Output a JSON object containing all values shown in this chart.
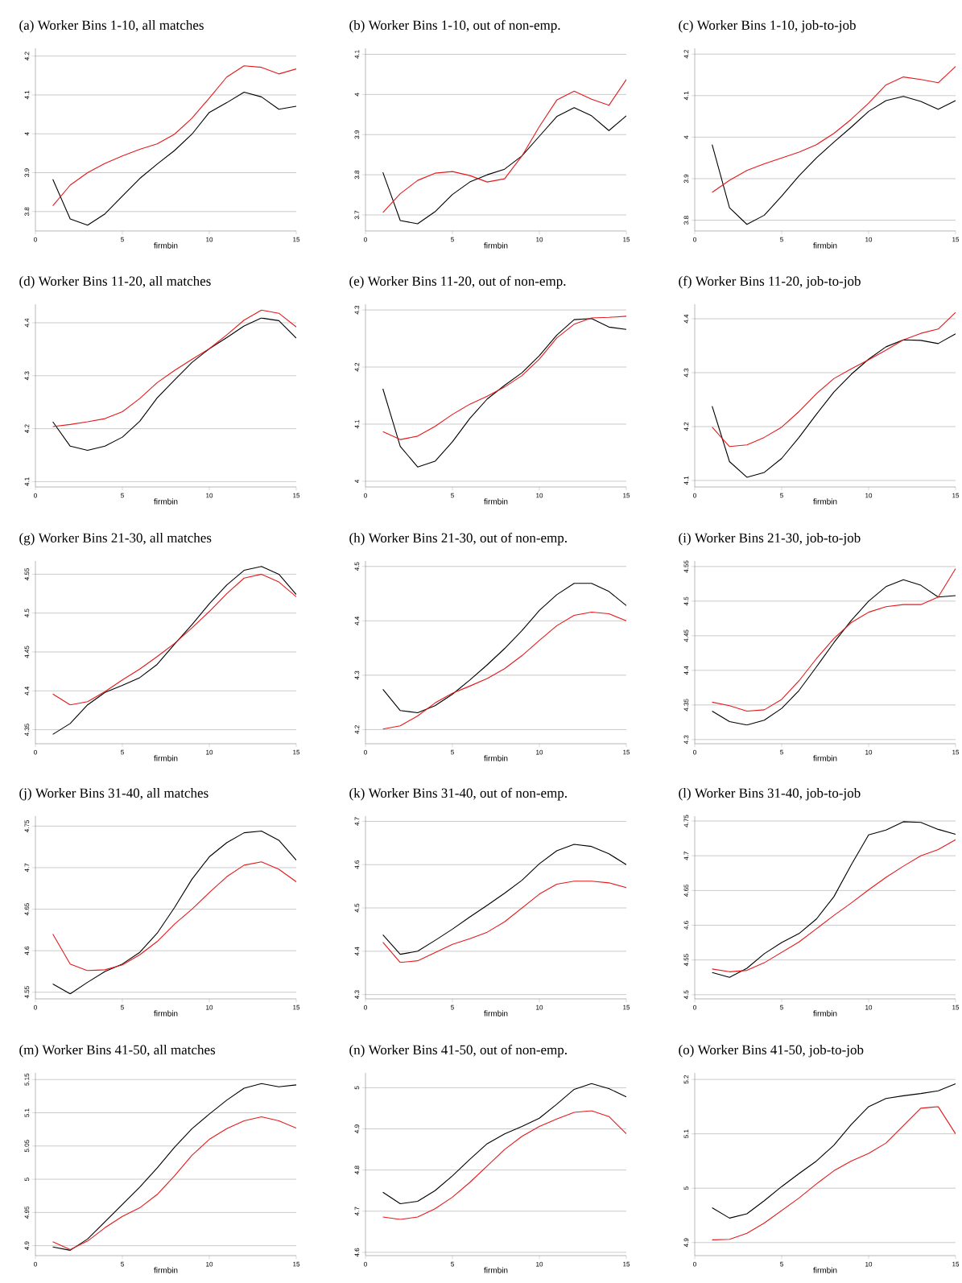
{
  "chart_data": [
    {
      "type": "line",
      "title": "(a) Worker Bins 1-10, all matches",
      "xlabel": "firmbin",
      "x": [
        1,
        2,
        3,
        4,
        5,
        6,
        7,
        8,
        9,
        10,
        11,
        12,
        13,
        14,
        15
      ],
      "xlim": [
        0,
        15
      ],
      "xticks": [
        0,
        5,
        10,
        15
      ],
      "ylim": [
        3.75,
        4.22
      ],
      "yticks": [
        3.8,
        3.9,
        4,
        4.1,
        4.2
      ],
      "grid": "y",
      "series": [
        {
          "color": "#000000",
          "values": [
            3.883,
            3.781,
            3.765,
            3.794,
            3.84,
            3.885,
            3.922,
            3.957,
            3.999,
            4.055,
            4.08,
            4.107,
            4.095,
            4.063,
            4.071
          ]
        },
        {
          "color": "#e41a1c",
          "values": [
            3.815,
            3.868,
            3.9,
            3.924,
            3.943,
            3.96,
            3.974,
            3.999,
            4.04,
            4.092,
            4.146,
            4.175,
            4.171,
            4.154,
            4.167
          ]
        }
      ]
    },
    {
      "type": "line",
      "title": "(b) Worker Bins 1-10, out of non-emp.",
      "xlabel": "firmbin",
      "x": [
        1,
        2,
        3,
        4,
        5,
        6,
        7,
        8,
        9,
        10,
        11,
        12,
        13,
        14,
        15
      ],
      "xlim": [
        0,
        15
      ],
      "xticks": [
        0,
        5,
        10,
        15
      ],
      "ylim": [
        3.66,
        4.115
      ],
      "yticks": [
        3.7,
        3.8,
        3.9,
        4,
        4.1
      ],
      "grid": "y",
      "series": [
        {
          "color": "#000000",
          "values": [
            3.806,
            3.686,
            3.678,
            3.708,
            3.751,
            3.782,
            3.8,
            3.814,
            3.847,
            3.896,
            3.945,
            3.967,
            3.947,
            3.91,
            3.947
          ]
        },
        {
          "color": "#e41a1c",
          "values": [
            3.706,
            3.753,
            3.786,
            3.804,
            3.808,
            3.798,
            3.782,
            3.79,
            3.847,
            3.92,
            3.986,
            4.008,
            3.988,
            3.973,
            4.037
          ]
        }
      ]
    },
    {
      "type": "line",
      "title": "(c) Worker Bins 1-10, job-to-job",
      "xlabel": "firmbin",
      "x": [
        1,
        2,
        3,
        4,
        5,
        6,
        7,
        8,
        9,
        10,
        11,
        12,
        13,
        14,
        15
      ],
      "xlim": [
        0,
        15
      ],
      "xticks": [
        0,
        5,
        10,
        15
      ],
      "ylim": [
        3.774,
        4.214
      ],
      "yticks": [
        3.8,
        3.9,
        4,
        4.1,
        4.2
      ],
      "grid": "y",
      "series": [
        {
          "color": "#000000",
          "values": [
            3.982,
            3.83,
            3.79,
            3.812,
            3.858,
            3.907,
            3.95,
            3.988,
            4.024,
            4.062,
            4.088,
            4.098,
            4.086,
            4.067,
            4.088
          ]
        },
        {
          "color": "#e41a1c",
          "values": [
            3.867,
            3.896,
            3.92,
            3.936,
            3.95,
            3.964,
            3.982,
            4.009,
            4.043,
            4.082,
            4.126,
            4.145,
            4.139,
            4.131,
            4.17
          ]
        }
      ]
    },
    {
      "type": "line",
      "title": "(d) Worker Bins 11-20, all matches",
      "xlabel": "firmbin",
      "x": [
        1,
        2,
        3,
        4,
        5,
        6,
        7,
        8,
        9,
        10,
        11,
        12,
        13,
        14,
        15
      ],
      "xlim": [
        0,
        15
      ],
      "xticks": [
        0,
        5,
        10,
        15
      ],
      "ylim": [
        4.09,
        4.435
      ],
      "yticks": [
        4.1,
        4.2,
        4.3,
        4.4
      ],
      "grid": "y",
      "series": [
        {
          "color": "#000000",
          "values": [
            4.213,
            4.167,
            4.159,
            4.167,
            4.184,
            4.214,
            4.258,
            4.292,
            4.325,
            4.351,
            4.372,
            4.394,
            4.409,
            4.404,
            4.371
          ]
        },
        {
          "color": "#e41a1c",
          "values": [
            4.204,
            4.208,
            4.213,
            4.219,
            4.232,
            4.257,
            4.287,
            4.31,
            4.331,
            4.351,
            4.377,
            4.405,
            4.424,
            4.418,
            4.392
          ]
        }
      ]
    },
    {
      "type": "line",
      "title": "(e) Worker Bins 11-20, out of non-emp.",
      "xlabel": "firmbin",
      "x": [
        1,
        2,
        3,
        4,
        5,
        6,
        7,
        8,
        9,
        10,
        11,
        12,
        13,
        14,
        15
      ],
      "xlim": [
        0,
        15
      ],
      "xticks": [
        0,
        5,
        10,
        15
      ],
      "ylim": [
        3.99,
        4.31
      ],
      "yticks": [
        4,
        4.1,
        4.2,
        4.3
      ],
      "grid": "y",
      "series": [
        {
          "color": "#000000",
          "values": [
            4.162,
            4.061,
            4.025,
            4.035,
            4.069,
            4.11,
            4.144,
            4.168,
            4.19,
            4.22,
            4.256,
            4.283,
            4.285,
            4.27,
            4.266
          ]
        },
        {
          "color": "#e41a1c",
          "values": [
            4.087,
            4.073,
            4.079,
            4.096,
            4.117,
            4.135,
            4.149,
            4.165,
            4.185,
            4.214,
            4.251,
            4.275,
            4.286,
            4.287,
            4.289
          ]
        }
      ]
    },
    {
      "type": "line",
      "title": "(f) Worker Bins 11-20, job-to-job",
      "xlabel": "firmbin",
      "x": [
        1,
        2,
        3,
        4,
        5,
        6,
        7,
        8,
        9,
        10,
        11,
        12,
        13,
        14,
        15
      ],
      "xlim": [
        0,
        15
      ],
      "xticks": [
        0,
        5,
        10,
        15
      ],
      "ylim": [
        4.088,
        4.427
      ],
      "yticks": [
        4.1,
        4.2,
        4.3,
        4.4
      ],
      "grid": "y",
      "series": [
        {
          "color": "#000000",
          "values": [
            4.238,
            4.135,
            4.106,
            4.115,
            4.141,
            4.18,
            4.223,
            4.264,
            4.297,
            4.325,
            4.348,
            4.361,
            4.36,
            4.354,
            4.372
          ]
        },
        {
          "color": "#e41a1c",
          "values": [
            4.199,
            4.163,
            4.166,
            4.18,
            4.199,
            4.228,
            4.261,
            4.289,
            4.307,
            4.324,
            4.342,
            4.361,
            4.373,
            4.381,
            4.412
          ]
        }
      ]
    },
    {
      "type": "line",
      "title": "(g) Worker Bins 21-30, all matches",
      "xlabel": "firmbin",
      "x": [
        1,
        2,
        3,
        4,
        5,
        6,
        7,
        8,
        9,
        10,
        11,
        12,
        13,
        14,
        15
      ],
      "xlim": [
        0,
        15
      ],
      "xticks": [
        0,
        5,
        10,
        15
      ],
      "ylim": [
        4.332,
        4.567
      ],
      "yticks": [
        4.35,
        4.4,
        4.45,
        4.5,
        4.55
      ],
      "grid": "y",
      "series": [
        {
          "color": "#000000",
          "values": [
            4.344,
            4.358,
            4.382,
            4.398,
            4.407,
            4.417,
            4.434,
            4.46,
            4.485,
            4.512,
            4.536,
            4.555,
            4.56,
            4.55,
            4.524
          ]
        },
        {
          "color": "#e41a1c",
          "values": [
            4.396,
            4.382,
            4.386,
            4.399,
            4.414,
            4.428,
            4.444,
            4.461,
            4.481,
            4.502,
            4.525,
            4.545,
            4.55,
            4.54,
            4.521
          ]
        }
      ]
    },
    {
      "type": "line",
      "title": "(h) Worker Bins 21-30, out of non-emp.",
      "xlabel": "firmbin",
      "x": [
        1,
        2,
        3,
        4,
        5,
        6,
        7,
        8,
        9,
        10,
        11,
        12,
        13,
        14,
        15
      ],
      "xlim": [
        0,
        15
      ],
      "xticks": [
        0,
        5,
        10,
        15
      ],
      "ylim": [
        4.174,
        4.51
      ],
      "yticks": [
        4.2,
        4.3,
        4.4,
        4.5
      ],
      "grid": "y",
      "series": [
        {
          "color": "#000000",
          "values": [
            4.274,
            4.235,
            4.231,
            4.244,
            4.265,
            4.291,
            4.319,
            4.349,
            4.382,
            4.419,
            4.448,
            4.469,
            4.469,
            4.454,
            4.428
          ]
        },
        {
          "color": "#e41a1c",
          "values": [
            4.201,
            4.207,
            4.225,
            4.249,
            4.267,
            4.28,
            4.294,
            4.312,
            4.336,
            4.364,
            4.391,
            4.41,
            4.416,
            4.413,
            4.4
          ]
        }
      ]
    },
    {
      "type": "line",
      "title": "(i) Worker Bins 21-30, job-to-job",
      "xlabel": "firmbin",
      "x": [
        1,
        2,
        3,
        4,
        5,
        6,
        7,
        8,
        9,
        10,
        11,
        12,
        13,
        14,
        15
      ],
      "xlim": [
        0,
        15
      ],
      "xticks": [
        0,
        5,
        10,
        15
      ],
      "ylim": [
        4.294,
        4.558
      ],
      "yticks": [
        4.3,
        4.35,
        4.4,
        4.45,
        4.5,
        4.55
      ],
      "grid": "y",
      "series": [
        {
          "color": "#000000",
          "values": [
            4.341,
            4.326,
            4.321,
            4.328,
            4.345,
            4.371,
            4.405,
            4.44,
            4.472,
            4.5,
            4.521,
            4.531,
            4.523,
            4.506,
            4.508
          ]
        },
        {
          "color": "#e41a1c",
          "values": [
            4.354,
            4.349,
            4.341,
            4.343,
            4.358,
            4.385,
            4.417,
            4.446,
            4.469,
            4.484,
            4.492,
            4.495,
            4.495,
            4.506,
            4.547
          ]
        }
      ]
    },
    {
      "type": "line",
      "title": "(j) Worker Bins 31-40, all matches",
      "xlabel": "firmbin",
      "x": [
        1,
        2,
        3,
        4,
        5,
        6,
        7,
        8,
        9,
        10,
        11,
        12,
        13,
        14,
        15
      ],
      "xlim": [
        0,
        15
      ],
      "xticks": [
        0,
        5,
        10,
        15
      ],
      "ylim": [
        4.542,
        4.762
      ],
      "yticks": [
        4.55,
        4.6,
        4.65,
        4.7,
        4.75
      ],
      "grid": "y",
      "series": [
        {
          "color": "#000000",
          "values": [
            4.56,
            4.548,
            4.562,
            4.575,
            4.584,
            4.598,
            4.621,
            4.652,
            4.686,
            4.713,
            4.73,
            4.742,
            4.744,
            4.733,
            4.709
          ]
        },
        {
          "color": "#e41a1c",
          "values": [
            4.62,
            4.584,
            4.576,
            4.577,
            4.583,
            4.595,
            4.611,
            4.632,
            4.65,
            4.67,
            4.689,
            4.703,
            4.707,
            4.698,
            4.683
          ]
        }
      ]
    },
    {
      "type": "line",
      "title": "(k) Worker Bins 31-40, out of non-emp.",
      "xlabel": "firmbin",
      "x": [
        1,
        2,
        3,
        4,
        5,
        6,
        7,
        8,
        9,
        10,
        11,
        12,
        13,
        14,
        15
      ],
      "xlim": [
        0,
        15
      ],
      "xticks": [
        0,
        5,
        10,
        15
      ],
      "ylim": [
        4.29,
        4.712
      ],
      "yticks": [
        4.3,
        4.4,
        4.5,
        4.6,
        4.7
      ],
      "grid": "y",
      "series": [
        {
          "color": "#000000",
          "values": [
            4.438,
            4.393,
            4.4,
            4.425,
            4.451,
            4.479,
            4.506,
            4.534,
            4.564,
            4.602,
            4.632,
            4.647,
            4.642,
            4.625,
            4.6
          ]
        },
        {
          "color": "#e41a1c",
          "values": [
            4.421,
            4.374,
            4.378,
            4.397,
            4.416,
            4.429,
            4.444,
            4.468,
            4.5,
            4.532,
            4.555,
            4.562,
            4.562,
            4.558,
            4.547
          ]
        }
      ]
    },
    {
      "type": "line",
      "title": "(l) Worker Bins 31-40, job-to-job",
      "xlabel": "firmbin",
      "x": [
        1,
        2,
        3,
        4,
        5,
        6,
        7,
        8,
        9,
        10,
        11,
        12,
        13,
        14,
        15
      ],
      "xlim": [
        0,
        15
      ],
      "xticks": [
        0,
        5,
        10,
        15
      ],
      "ylim": [
        4.494,
        4.757
      ],
      "yticks": [
        4.5,
        4.55,
        4.6,
        4.65,
        4.7,
        4.75
      ],
      "grid": "y",
      "series": [
        {
          "color": "#000000",
          "values": [
            4.532,
            4.525,
            4.538,
            4.559,
            4.575,
            4.588,
            4.609,
            4.641,
            4.687,
            4.73,
            4.737,
            4.749,
            4.748,
            4.738,
            4.731
          ]
        },
        {
          "color": "#e41a1c",
          "values": [
            4.537,
            4.533,
            4.535,
            4.546,
            4.561,
            4.576,
            4.595,
            4.614,
            4.632,
            4.651,
            4.669,
            4.685,
            4.7,
            4.709,
            4.723
          ]
        }
      ]
    },
    {
      "type": "line",
      "title": "(m) Worker Bins 41-50, all matches",
      "xlabel": "firmbin",
      "x": [
        1,
        2,
        3,
        4,
        5,
        6,
        7,
        8,
        9,
        10,
        11,
        12,
        13,
        14,
        15
      ],
      "xlim": [
        0,
        15
      ],
      "xticks": [
        0,
        5,
        10,
        15
      ],
      "ylim": [
        4.885,
        5.16
      ],
      "yticks": [
        4.9,
        4.95,
        5,
        5.05,
        5.1,
        5.15
      ],
      "grid": "y",
      "series": [
        {
          "color": "#000000",
          "values": [
            4.898,
            4.893,
            4.91,
            4.936,
            4.962,
            4.988,
            5.017,
            5.048,
            5.076,
            5.098,
            5.119,
            5.137,
            5.144,
            5.139,
            5.142
          ]
        },
        {
          "color": "#e41a1c",
          "values": [
            4.906,
            4.894,
            4.907,
            4.927,
            4.944,
            4.957,
            4.977,
            5.005,
            5.036,
            5.06,
            5.076,
            5.088,
            5.094,
            5.088,
            5.077
          ]
        }
      ]
    },
    {
      "type": "line",
      "title": "(n) Worker Bins 41-50, out of non-emp.",
      "xlabel": "firmbin",
      "x": [
        1,
        2,
        3,
        4,
        5,
        6,
        7,
        8,
        9,
        10,
        11,
        12,
        13,
        14,
        15
      ],
      "xlim": [
        0,
        15
      ],
      "xticks": [
        0,
        5,
        10,
        15
      ],
      "ylim": [
        4.592,
        5.036
      ],
      "yticks": [
        4.6,
        4.7,
        4.8,
        4.9,
        5
      ],
      "grid": "y",
      "series": [
        {
          "color": "#000000",
          "values": [
            4.746,
            4.718,
            4.724,
            4.75,
            4.786,
            4.826,
            4.864,
            4.888,
            4.906,
            4.926,
            4.96,
            4.996,
            5.01,
            4.998,
            4.978
          ]
        },
        {
          "color": "#e41a1c",
          "values": [
            4.686,
            4.68,
            4.686,
            4.706,
            4.734,
            4.77,
            4.81,
            4.85,
            4.882,
            4.906,
            4.924,
            4.94,
            4.944,
            4.93,
            4.888
          ]
        }
      ]
    },
    {
      "type": "line",
      "title": "(o) Worker Bins 41-50, job-to-job",
      "xlabel": "firmbin",
      "x": [
        1,
        2,
        3,
        4,
        5,
        6,
        7,
        8,
        9,
        10,
        11,
        12,
        13,
        14,
        15
      ],
      "xlim": [
        0,
        15
      ],
      "xticks": [
        0,
        5,
        10,
        15
      ],
      "ylim": [
        4.876,
        5.212
      ],
      "yticks": [
        4.9,
        5,
        5.1,
        5.2
      ],
      "grid": "y",
      "series": [
        {
          "color": "#000000",
          "values": [
            4.964,
            4.945,
            4.953,
            4.977,
            5.003,
            5.027,
            5.05,
            5.079,
            5.117,
            5.15,
            5.165,
            5.17,
            5.174,
            5.179,
            5.192
          ]
        },
        {
          "color": "#e41a1c",
          "values": [
            4.905,
            4.906,
            4.917,
            4.936,
            4.959,
            4.982,
            5.008,
            5.032,
            5.05,
            5.064,
            5.083,
            5.115,
            5.147,
            5.15,
            5.1
          ]
        }
      ]
    }
  ]
}
